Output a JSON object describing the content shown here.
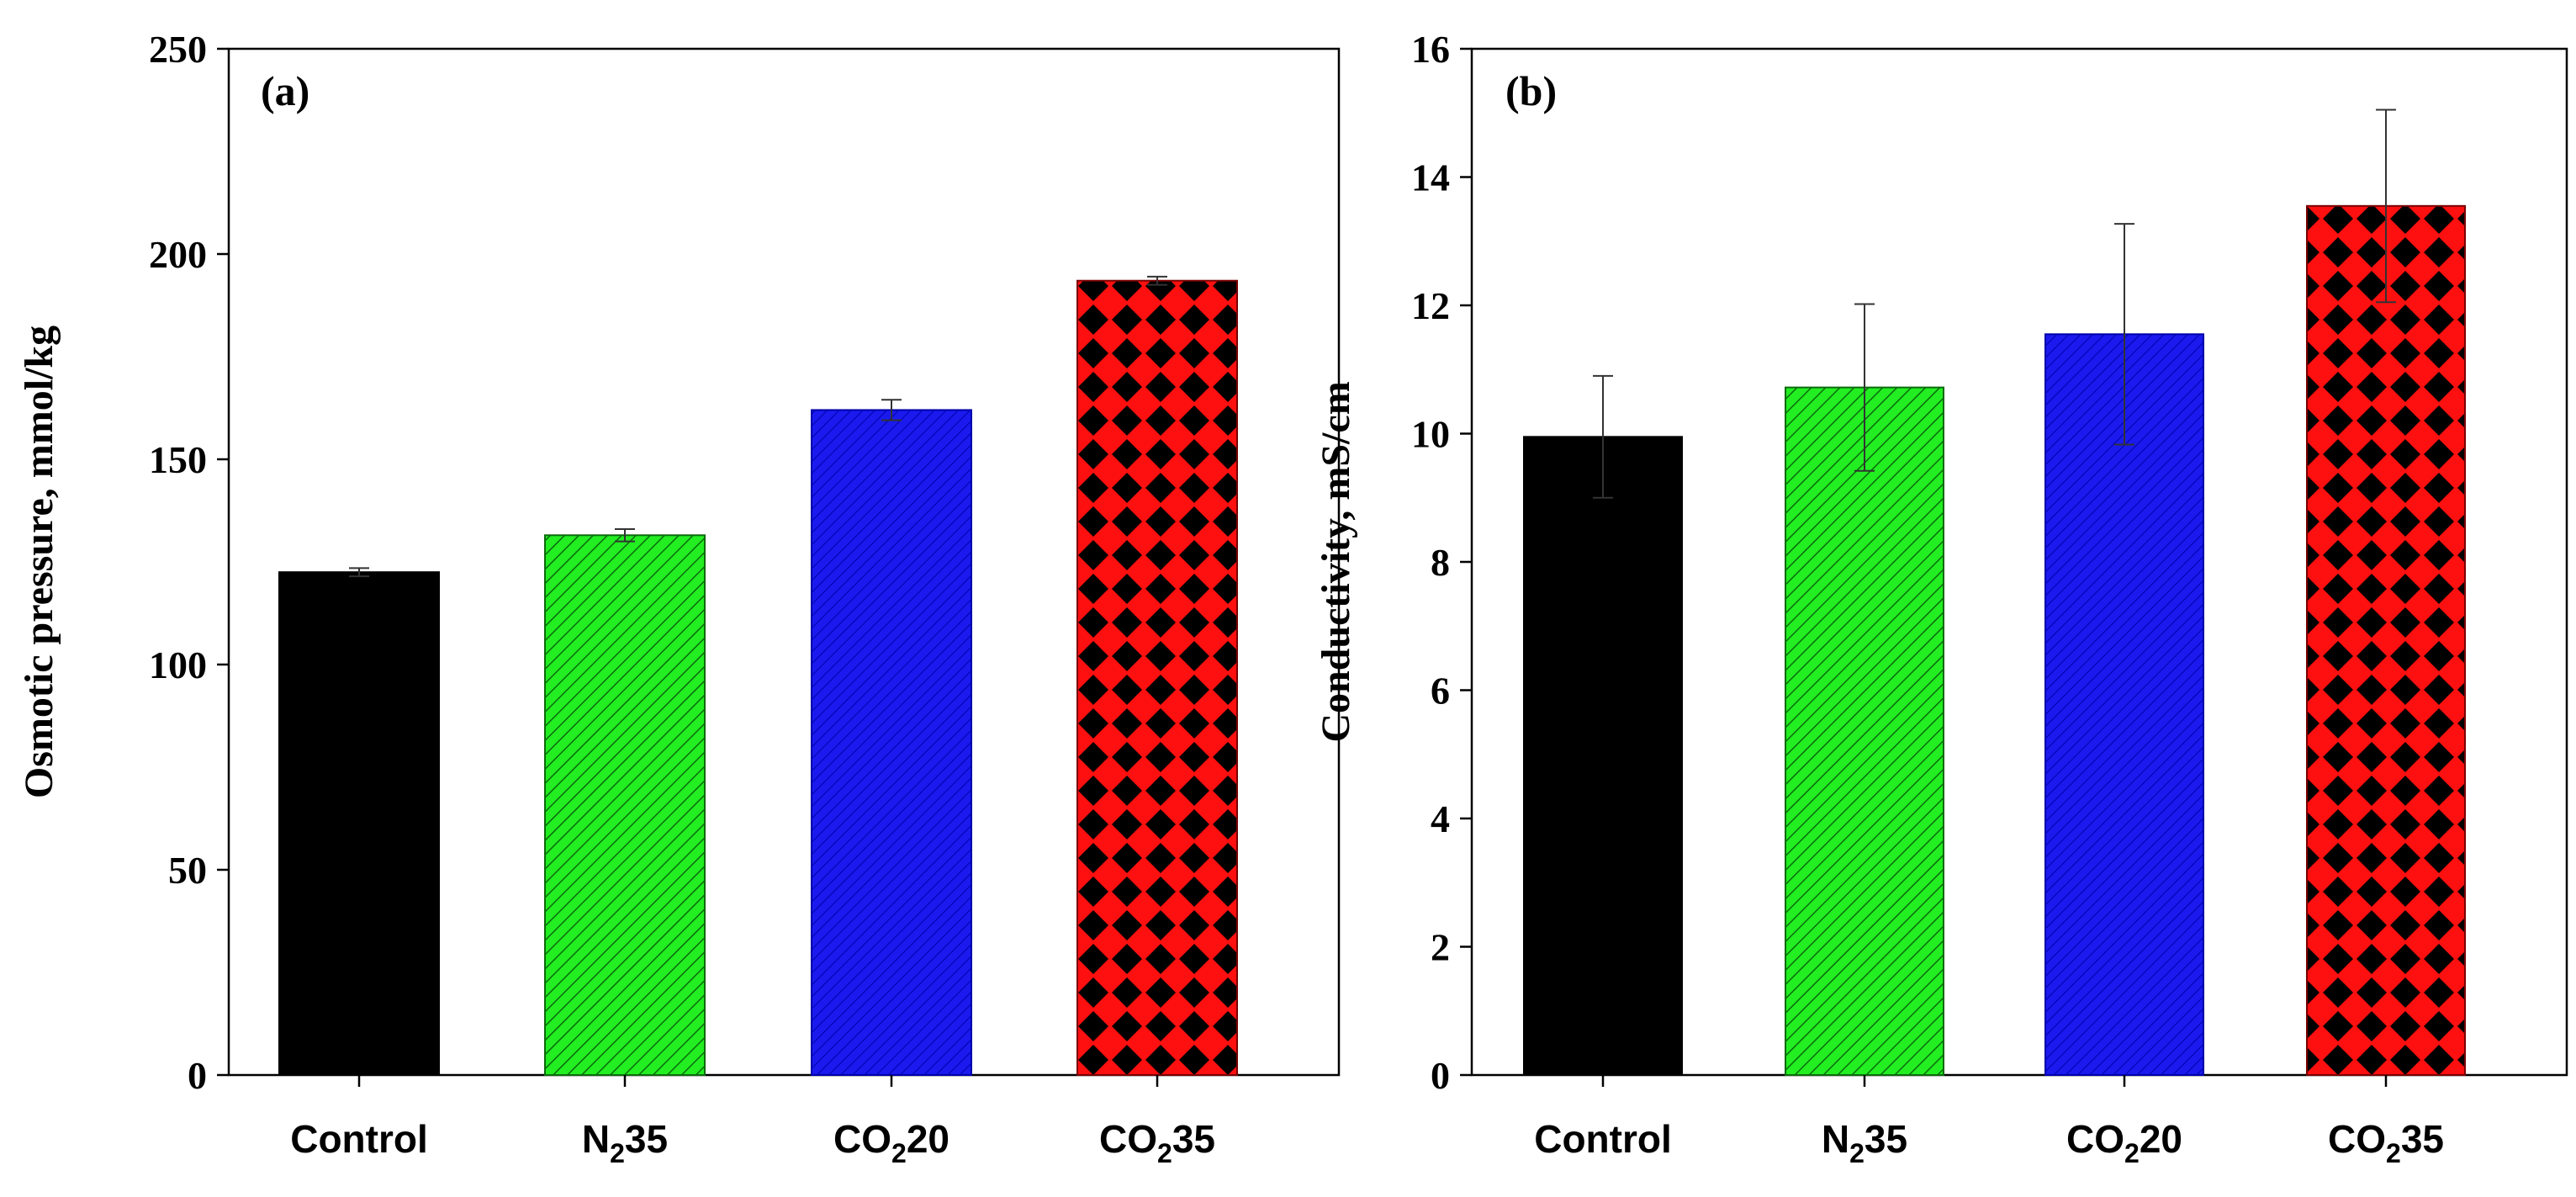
{
  "colors": {
    "control": "#000000",
    "n2_35": "#22ee22",
    "co2_20": "#1a1aee",
    "co2_35": "#ff1010",
    "hatch": "#0b6b0b",
    "blue_hatch": "#0000aa",
    "checker_dot": "#000000"
  },
  "chart_data": [
    {
      "type": "bar",
      "panel_label": "(a)",
      "ylabel": "Osmotic pressure, mmol/kg",
      "xlabel": "",
      "ylim": [
        0,
        250
      ],
      "yticks": [
        "0",
        "50",
        "100",
        "150",
        "200",
        "250"
      ],
      "categories": [
        {
          "base": "Control",
          "sub": "",
          "rest": ""
        },
        {
          "base": "N",
          "sub": "2",
          "rest": "35"
        },
        {
          "base": "CO",
          "sub": "2",
          "rest": "20"
        },
        {
          "base": "CO",
          "sub": "2",
          "rest": "35"
        }
      ],
      "values": [
        122.5,
        131.5,
        162,
        193.5
      ],
      "errors": [
        1,
        1.5,
        2.5,
        1
      ],
      "grid": false,
      "legend": "none"
    },
    {
      "type": "bar",
      "panel_label": "(b)",
      "ylabel": "Conductivity, mS/cm",
      "xlabel": "",
      "ylim": [
        0,
        16
      ],
      "yticks": [
        "0",
        "2",
        "4",
        "6",
        "8",
        "10",
        "12",
        "14",
        "16"
      ],
      "categories": [
        {
          "base": "Control",
          "sub": "",
          "rest": ""
        },
        {
          "base": "N",
          "sub": "2",
          "rest": "35"
        },
        {
          "base": "CO",
          "sub": "2",
          "rest": "20"
        },
        {
          "base": "CO",
          "sub": "2",
          "rest": "35"
        }
      ],
      "values": [
        9.95,
        10.72,
        11.55,
        13.55
      ],
      "errors": [
        0.95,
        1.3,
        1.72,
        1.5
      ],
      "grid": false,
      "legend": "none"
    }
  ]
}
